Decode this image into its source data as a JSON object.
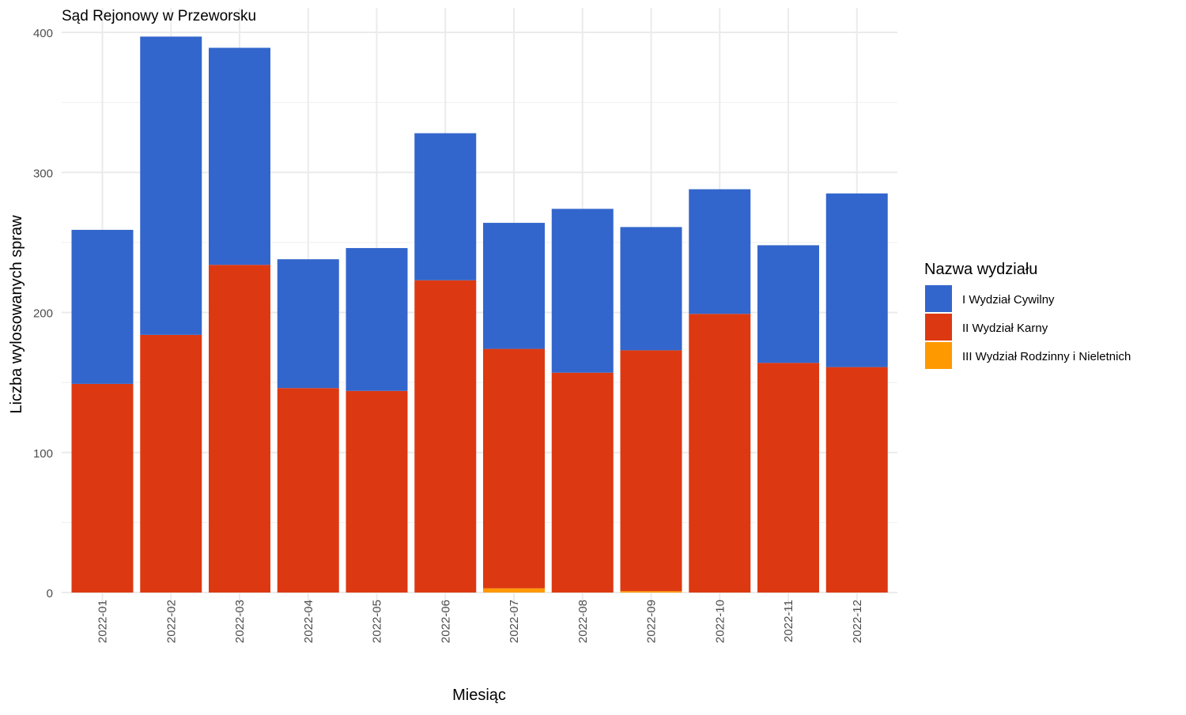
{
  "chart_data": {
    "type": "bar",
    "stacked": true,
    "title": "Sąd Rejonowy w Przeworsku",
    "xlabel": "Miesiąc",
    "ylabel": "Liczba wylosowanych spraw",
    "ylim": [
      0,
      400
    ],
    "yticks": [
      0,
      100,
      200,
      300,
      400
    ],
    "grid": true,
    "legend_position": "right",
    "legend_title": "Nazwa wydziału",
    "categories": [
      "2022-01",
      "2022-02",
      "2022-03",
      "2022-04",
      "2022-05",
      "2022-06",
      "2022-07",
      "2022-08",
      "2022-09",
      "2022-10",
      "2022-11",
      "2022-12"
    ],
    "series": [
      {
        "name": "I Wydział Cywilny",
        "color": "#3366cc",
        "values": [
          110,
          213,
          155,
          92,
          102,
          105,
          90,
          117,
          88,
          89,
          84,
          124
        ]
      },
      {
        "name": "II Wydział Karny",
        "color": "#dc3912",
        "values": [
          149,
          184,
          234,
          146,
          144,
          223,
          171,
          157,
          172,
          199,
          164,
          161
        ]
      },
      {
        "name": "III Wydział Rodzinny i Nieletnich",
        "color": "#ff9900",
        "values": [
          0,
          0,
          0,
          0,
          0,
          0,
          3,
          0,
          1,
          0,
          0,
          0
        ]
      }
    ]
  }
}
